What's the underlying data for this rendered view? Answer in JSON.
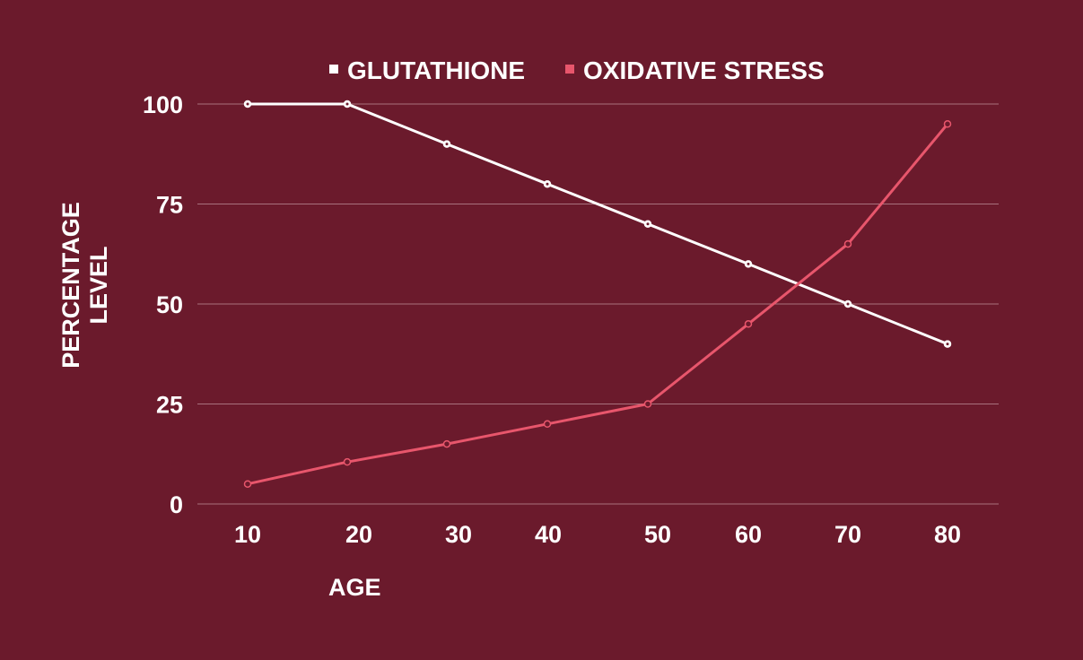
{
  "chart_data": {
    "type": "line",
    "title": "",
    "xlabel": "AGE",
    "ylabel_lines": [
      "PERCENTAGE",
      "LEVEL"
    ],
    "x": [
      10,
      20,
      30,
      40,
      50,
      60,
      70,
      80
    ],
    "x_tick_labels": [
      "10",
      "20",
      "30",
      "40",
      "50",
      "60",
      "70",
      "80"
    ],
    "y_ticks": [
      0,
      25,
      50,
      75,
      100
    ],
    "y_tick_labels": [
      "0",
      "25",
      "50",
      "75",
      "100"
    ],
    "ylim": [
      0,
      100
    ],
    "grid": true,
    "legend_placement": "top-center",
    "series": [
      {
        "name": "GLUTATHIONE",
        "color": "#ffffff",
        "values": [
          100,
          100,
          90,
          80,
          70,
          60,
          50,
          40
        ]
      },
      {
        "name": "OXIDATIVE STRESS",
        "color": "#e8566c",
        "values": [
          5,
          10.5,
          15,
          20,
          25,
          45,
          65,
          95
        ]
      }
    ]
  },
  "colors": {
    "background": "#6b1a2c",
    "gridline": "#a8727d",
    "text": "#ffffff"
  }
}
